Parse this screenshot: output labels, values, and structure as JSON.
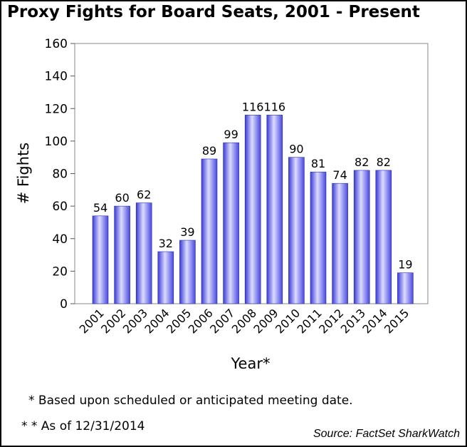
{
  "title": "Proxy Fights for Board Seats, 2001 - Present",
  "footnote": "* Based upon scheduled or anticipated meeting date.",
  "asof": "* * As of 12/31/2014",
  "source": "Source: FactSet SharkWatch",
  "colors": {
    "bar_dark": "#3a3ad8",
    "bar_light": "#d8d8ff",
    "bar_mid": "#7070f0"
  },
  "chart_data": {
    "type": "bar",
    "title": "Proxy Fights for Board Seats, 2001 - Present",
    "xlabel": "Year*",
    "ylabel": "# Fights",
    "ylim": [
      0,
      160
    ],
    "yticks": [
      0,
      20,
      40,
      60,
      80,
      100,
      120,
      140,
      160
    ],
    "grid": false,
    "categories": [
      "2001",
      "2002",
      "2003",
      "2004",
      "2005",
      "2006",
      "2007",
      "2008",
      "2009",
      "2010",
      "2011",
      "2012",
      "2013",
      "2014",
      "2015"
    ],
    "values": [
      54,
      60,
      62,
      32,
      39,
      89,
      99,
      116,
      116,
      90,
      81,
      74,
      82,
      82,
      19
    ],
    "data_labels": [
      "54",
      "60",
      "62",
      "32",
      "39",
      "89",
      "99",
      "116",
      "116",
      "90",
      "81",
      "74",
      "82",
      "82",
      "19"
    ]
  }
}
